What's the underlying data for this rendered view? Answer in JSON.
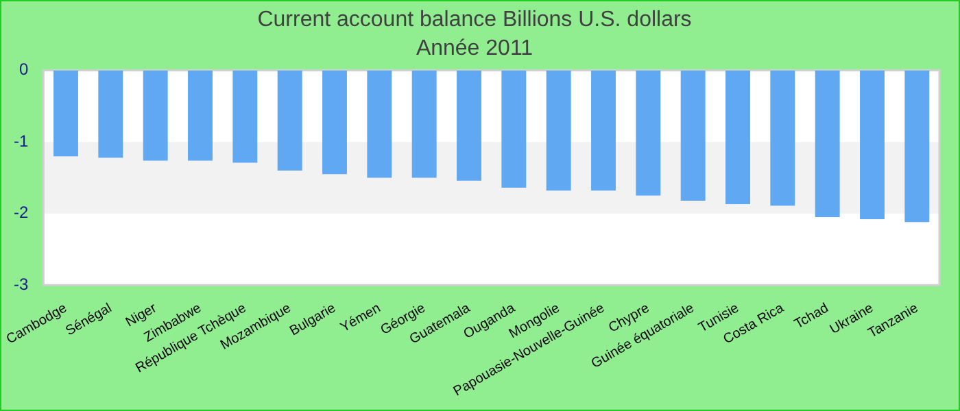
{
  "chart_data": {
    "type": "bar",
    "title": "Current account balance Billions U.S. dollars",
    "subtitle": "Année 2011",
    "categories": [
      "Cambodge",
      "Sénégal",
      "Niger",
      "Zimbabwe",
      "République Tchèque",
      "Mozambique",
      "Bulgarie",
      "Yémen",
      "Géorgie",
      "Guatemala",
      "Ouganda",
      "Mongolie",
      "Papouasie-Nouvelle-Guinée",
      "Chypre",
      "Guinée équatoriale",
      "Tunisie",
      "Costa Rica",
      "Tchad",
      "Ukraine",
      "Tanzanie"
    ],
    "values": [
      -1.2,
      -1.22,
      -1.26,
      -1.26,
      -1.29,
      -1.4,
      -1.45,
      -1.5,
      -1.5,
      -1.54,
      -1.64,
      -1.68,
      -1.68,
      -1.75,
      -1.82,
      -1.87,
      -1.89,
      -2.05,
      -2.08,
      -2.12
    ],
    "color": "#60a8f2",
    "ylim": [
      -3,
      0
    ],
    "yticks": [
      -3,
      -2,
      -1,
      0
    ],
    "bands": [
      {
        "axis": "y",
        "from": -2,
        "to": -1,
        "color": "#f2f2f2"
      }
    ]
  }
}
